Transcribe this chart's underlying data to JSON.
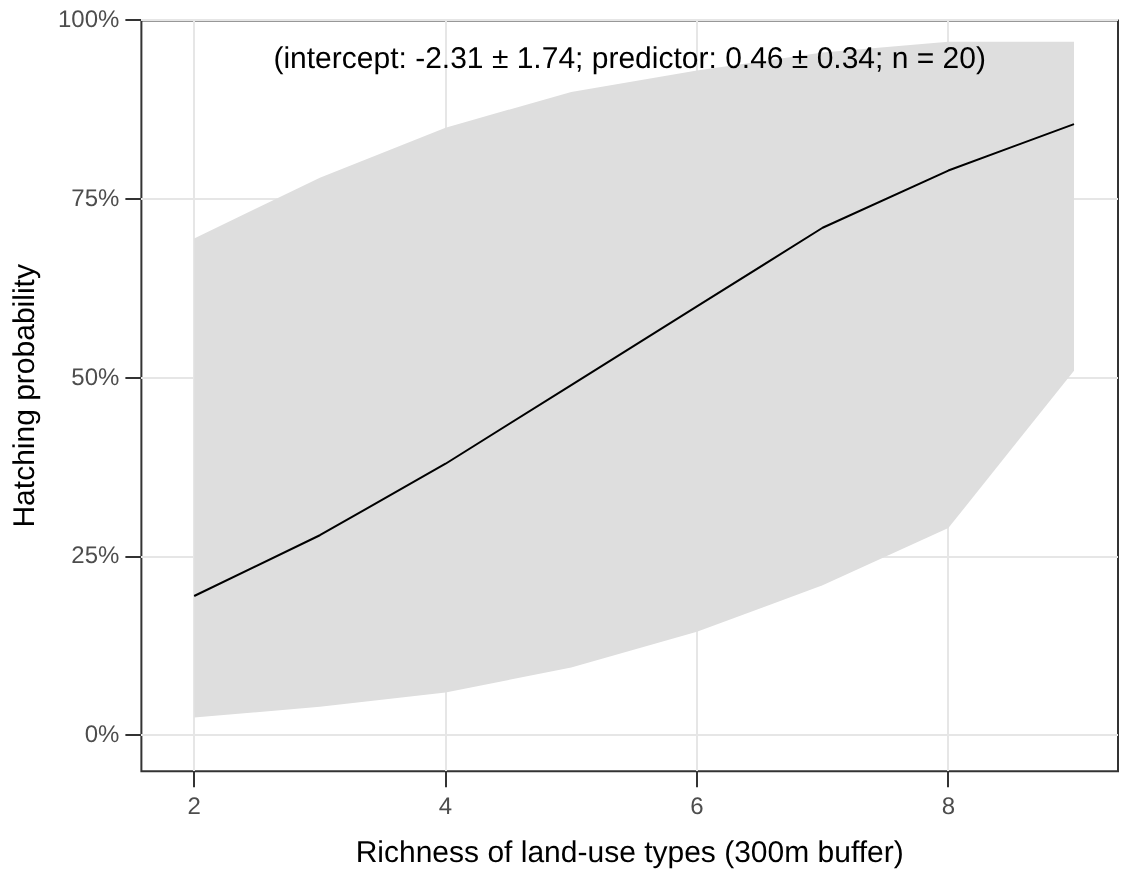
{
  "chart_data": {
    "type": "line",
    "xlabel": "Richness of land-use types (300m buffer)",
    "ylabel": "Hatching probability",
    "annotations": [
      "(intercept: -2.31 ± 1.74; predictor: 0.46 ± 0.34; n = 20)"
    ],
    "x": [
      2,
      3,
      4,
      5,
      6,
      7,
      8,
      9
    ],
    "series": [
      {
        "color": "#000000",
        "values": [
          19.5,
          28,
          38,
          49,
          60,
          71,
          79,
          85.5
        ],
        "lower": [
          2.5,
          4,
          6,
          9.5,
          14.5,
          21,
          29,
          51
        ],
        "upper": [
          69.5,
          78,
          85,
          90,
          93,
          95.5,
          97,
          97
        ]
      }
    ],
    "xlim": [
      1.58,
      9.35
    ],
    "xticks": [
      2,
      4,
      6,
      8
    ],
    "ylim": [
      -5,
      100
    ],
    "yticks": [
      {
        "value": 0,
        "label": "0%"
      },
      {
        "value": 25,
        "label": "25%"
      },
      {
        "value": 50,
        "label": "50%"
      },
      {
        "value": 75,
        "label": "75%"
      },
      {
        "value": 100,
        "label": "100%"
      }
    ],
    "grid": true,
    "legend": false,
    "marker": "none",
    "line_style": "solid"
  }
}
